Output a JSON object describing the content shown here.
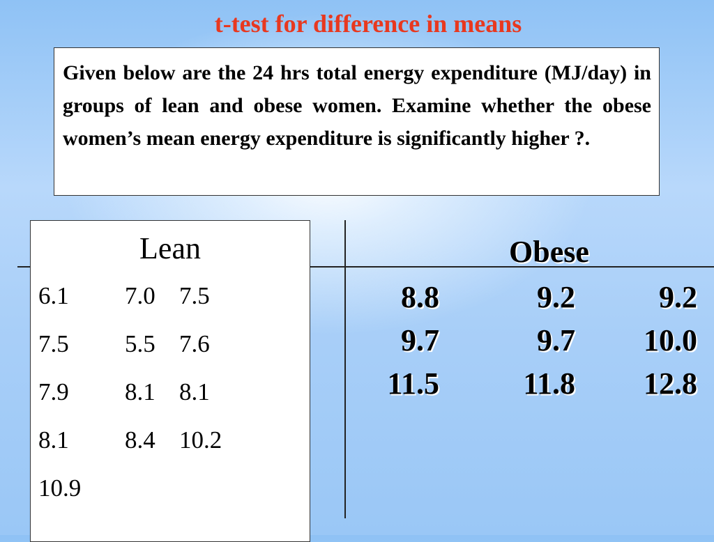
{
  "slide": {
    "title": "t-test for difference in means",
    "question": "Given below are the 24 hrs total energy expenditure (MJ/day) in groups of lean and obese women. Examine whether the obese women’s mean energy expenditure is significantly higher ?."
  },
  "lean": {
    "header": "Lean",
    "rows": [
      [
        "6.1",
        "7.0",
        "7.5"
      ],
      [
        "7.5",
        "5.5",
        "7.6"
      ],
      [
        "7.9",
        "8.1",
        "8.1"
      ],
      [
        "8.1",
        "8.4",
        "10.2"
      ],
      [
        "10.9",
        "",
        ""
      ]
    ]
  },
  "obese": {
    "header": "Obese",
    "rows": [
      [
        "8.8",
        "9.2",
        "9.2"
      ],
      [
        "9.7",
        "9.7",
        "10.0"
      ],
      [
        "11.5",
        "11.8",
        "12.8"
      ]
    ]
  },
  "colors": {
    "title": "#e8381f",
    "background": "#a9cff8"
  }
}
